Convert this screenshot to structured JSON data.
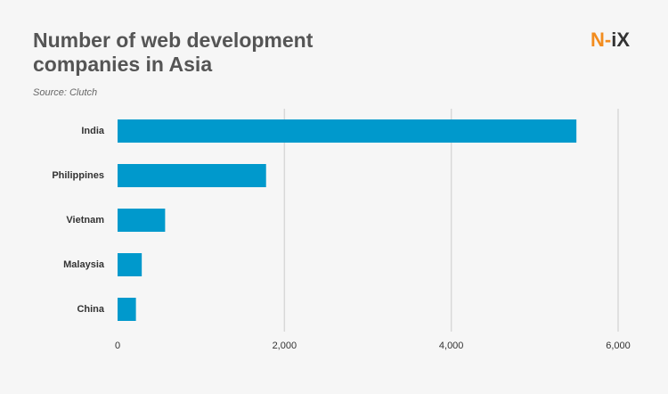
{
  "chart_data": {
    "type": "barh",
    "title": "Number of web development companies in Asia",
    "source": "Source: Clutch",
    "logo": {
      "accent": "N-",
      "rest": "iX"
    },
    "categories": [
      "India",
      "Philippines",
      "Vietnam",
      "Malaysia",
      "China"
    ],
    "values": [
      5500,
      1780,
      570,
      290,
      220
    ],
    "color": "#0099cc",
    "xlim": [
      0,
      6000
    ],
    "xticks": [
      0,
      {
        "value": 2000,
        "label": "2,000"
      },
      {
        "value": 4000,
        "label": "4,000"
      },
      {
        "value": 6000,
        "label": "6,000"
      }
    ],
    "grid": true
  }
}
